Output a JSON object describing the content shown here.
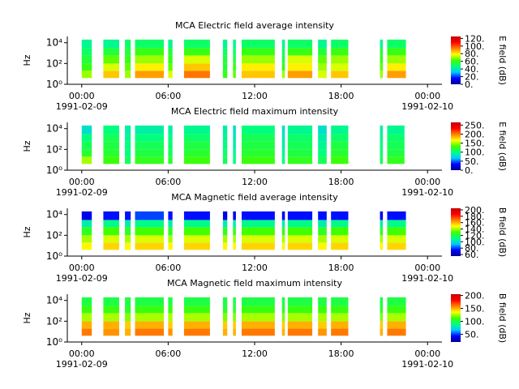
{
  "chart_data": [
    {
      "type": "heatmap",
      "title": "MCA  Electric field average intensity",
      "ylabel": "Hz",
      "colorbar_label": "E field (dB)",
      "log_y": true,
      "ylim": [
        1,
        40000
      ],
      "yticks": [
        {
          "value": 1,
          "label": "10⁰"
        },
        {
          "value": 100,
          "label": "10²"
        },
        {
          "value": 10000,
          "label": "10⁴"
        }
      ],
      "xlim": [
        -1,
        25
      ],
      "xticks": [
        {
          "value": 0,
          "label": "00:00\n1991-02-09"
        },
        {
          "value": 6,
          "label": "06:00"
        },
        {
          "value": 12,
          "label": "12:00"
        },
        {
          "value": 18,
          "label": "18:00"
        },
        {
          "value": 24,
          "label": "00:00\n1991-02-10"
        }
      ],
      "clim": [
        0,
        125
      ],
      "cticks": [
        {
          "value": 0,
          "label": "0."
        },
        {
          "value": 20,
          "label": "20."
        },
        {
          "value": 40,
          "label": "40."
        },
        {
          "value": 60,
          "label": "60."
        },
        {
          "value": 80,
          "label": "80."
        },
        {
          "value": 100,
          "label": "100."
        },
        {
          "value": 120,
          "label": "120."
        }
      ],
      "colormap": [
        "#000090",
        "#0000ff",
        "#00c8ff",
        "#00ff80",
        "#40ff00",
        "#ffff00",
        "#ff8000",
        "#ff0000",
        "#c00000"
      ],
      "bands": [
        4,
        20,
        100,
        600,
        3000,
        20000
      ],
      "segments": [
        [
          0.0,
          0.7
        ],
        [
          1.5,
          2.6
        ],
        [
          3.0,
          3.4
        ],
        [
          3.7,
          5.7
        ],
        [
          6.0,
          6.3
        ],
        [
          7.1,
          8.9
        ],
        [
          9.8,
          10.1
        ],
        [
          10.5,
          10.7
        ],
        [
          11.1,
          13.4
        ],
        [
          13.9,
          14.1
        ],
        [
          14.3,
          16.0
        ],
        [
          16.4,
          17.0
        ],
        [
          17.3,
          18.5
        ],
        [
          20.7,
          20.9
        ],
        [
          21.2,
          22.5
        ]
      ],
      "values": [
        [
          70,
          60,
          55,
          50,
          45
        ],
        [
          85,
          75,
          65,
          55,
          45
        ],
        [
          70,
          65,
          60,
          55,
          50
        ],
        [
          90,
          80,
          70,
          60,
          50
        ],
        [
          75,
          65,
          60,
          55,
          45
        ],
        [
          95,
          85,
          75,
          60,
          50
        ],
        [
          60,
          55,
          55,
          50,
          45
        ],
        [
          65,
          60,
          55,
          50,
          45
        ],
        [
          85,
          80,
          70,
          60,
          50
        ],
        [
          70,
          60,
          55,
          50,
          45
        ],
        [
          90,
          80,
          75,
          60,
          50
        ],
        [
          75,
          70,
          65,
          55,
          45
        ],
        [
          85,
          75,
          70,
          60,
          50
        ],
        [
          70,
          65,
          60,
          55,
          45
        ],
        [
          90,
          80,
          70,
          60,
          50
        ]
      ]
    },
    {
      "type": "heatmap",
      "title": "MCA  Electric field maximum intensity",
      "ylabel": "Hz",
      "colorbar_label": "E field (dB)",
      "log_y": true,
      "ylim": [
        1,
        40000
      ],
      "yticks": [
        {
          "value": 1,
          "label": "10⁰"
        },
        {
          "value": 100,
          "label": "10²"
        },
        {
          "value": 10000,
          "label": "10⁴"
        }
      ],
      "xlim": [
        -1,
        25
      ],
      "xticks": [
        {
          "value": 0,
          "label": "00:00\n1991-02-09"
        },
        {
          "value": 6,
          "label": "06:00"
        },
        {
          "value": 12,
          "label": "12:00"
        },
        {
          "value": 18,
          "label": "18:00"
        },
        {
          "value": 24,
          "label": "00:00\n1991-02-10"
        }
      ],
      "clim": [
        0,
        265
      ],
      "cticks": [
        {
          "value": 0,
          "label": "0."
        },
        {
          "value": 50,
          "label": "50."
        },
        {
          "value": 100,
          "label": "100."
        },
        {
          "value": 150,
          "label": "150."
        },
        {
          "value": 200,
          "label": "200."
        },
        {
          "value": 250,
          "label": "250."
        }
      ],
      "colormap": [
        "#000090",
        "#0000ff",
        "#00c8ff",
        "#00ff80",
        "#40ff00",
        "#ffff00",
        "#ff8000",
        "#ff0000",
        "#c00000"
      ],
      "bands": [
        4,
        20,
        100,
        600,
        3000,
        20000
      ],
      "segments": [
        [
          0.0,
          0.7
        ],
        [
          1.5,
          2.6
        ],
        [
          3.0,
          3.4
        ],
        [
          3.7,
          5.7
        ],
        [
          6.0,
          6.3
        ],
        [
          7.1,
          8.9
        ],
        [
          9.8,
          10.1
        ],
        [
          10.5,
          10.7
        ],
        [
          11.1,
          13.4
        ],
        [
          13.9,
          14.1
        ],
        [
          14.3,
          16.0
        ],
        [
          16.4,
          17.0
        ],
        [
          17.3,
          18.5
        ],
        [
          20.7,
          20.9
        ],
        [
          21.2,
          22.4
        ]
      ],
      "values": [
        [
          150,
          120,
          110,
          100,
          80
        ],
        [
          130,
          120,
          115,
          110,
          100
        ],
        [
          110,
          100,
          100,
          95,
          90
        ],
        [
          125,
          115,
          110,
          100,
          90
        ],
        [
          120,
          110,
          105,
          100,
          90
        ],
        [
          130,
          120,
          115,
          105,
          95
        ],
        [
          110,
          105,
          100,
          95,
          90
        ],
        [
          100,
          95,
          90,
          85,
          80
        ],
        [
          130,
          120,
          115,
          110,
          100
        ],
        [
          100,
          95,
          90,
          85,
          80
        ],
        [
          125,
          115,
          110,
          105,
          95
        ],
        [
          110,
          100,
          95,
          90,
          80
        ],
        [
          130,
          120,
          115,
          105,
          95
        ],
        [
          110,
          105,
          100,
          95,
          90
        ],
        [
          125,
          115,
          110,
          105,
          95
        ]
      ]
    },
    {
      "type": "heatmap",
      "title": "MCA  Magnetic field average intensity",
      "ylabel": "Hz",
      "colorbar_label": "B field (dB)",
      "log_y": true,
      "ylim": [
        1,
        40000
      ],
      "yticks": [
        {
          "value": 1,
          "label": "10⁰"
        },
        {
          "value": 100,
          "label": "10²"
        },
        {
          "value": 10000,
          "label": "10⁴"
        }
      ],
      "xlim": [
        -1,
        25
      ],
      "xticks": [
        {
          "value": 0,
          "label": "00:00\n1991-02-09"
        },
        {
          "value": 6,
          "label": "06:00"
        },
        {
          "value": 12,
          "label": "12:00"
        },
        {
          "value": 18,
          "label": "18:00"
        },
        {
          "value": 24,
          "label": "00:00\n1991-02-10"
        }
      ],
      "clim": [
        55,
        205
      ],
      "cticks": [
        {
          "value": 60,
          "label": "60."
        },
        {
          "value": 80,
          "label": "80."
        },
        {
          "value": 100,
          "label": "100."
        },
        {
          "value": 120,
          "label": "120."
        },
        {
          "value": 140,
          "label": "140."
        },
        {
          "value": 160,
          "label": "160."
        },
        {
          "value": 180,
          "label": "180."
        },
        {
          "value": 200,
          "label": "200."
        }
      ],
      "colormap": [
        "#000090",
        "#0000ff",
        "#00c8ff",
        "#00ff80",
        "#40ff00",
        "#ffff00",
        "#ff8000",
        "#ff0000",
        "#c00000"
      ],
      "bands": [
        4,
        20,
        100,
        600,
        3000,
        20000
      ],
      "segments": [
        [
          0.0,
          0.7
        ],
        [
          1.5,
          2.6
        ],
        [
          3.0,
          3.4
        ],
        [
          3.7,
          5.7
        ],
        [
          6.0,
          6.3
        ],
        [
          7.1,
          8.9
        ],
        [
          9.8,
          10.1
        ],
        [
          10.5,
          10.7
        ],
        [
          11.1,
          13.4
        ],
        [
          13.9,
          14.1
        ],
        [
          14.3,
          16.0
        ],
        [
          16.4,
          17.0
        ],
        [
          17.3,
          18.5
        ],
        [
          20.7,
          20.9
        ],
        [
          21.2,
          22.5
        ]
      ],
      "values": [
        [
          150,
          140,
          125,
          105,
          70
        ],
        [
          155,
          145,
          130,
          110,
          75
        ],
        [
          150,
          140,
          125,
          105,
          75
        ],
        [
          155,
          145,
          130,
          110,
          80
        ],
        [
          150,
          140,
          125,
          105,
          75
        ],
        [
          155,
          145,
          130,
          110,
          75
        ],
        [
          150,
          140,
          125,
          105,
          70
        ],
        [
          150,
          140,
          125,
          105,
          70
        ],
        [
          155,
          145,
          130,
          110,
          75
        ],
        [
          150,
          140,
          125,
          105,
          70
        ],
        [
          155,
          145,
          130,
          110,
          75
        ],
        [
          150,
          140,
          125,
          105,
          75
        ],
        [
          155,
          145,
          130,
          110,
          75
        ],
        [
          150,
          140,
          125,
          105,
          70
        ],
        [
          155,
          145,
          130,
          110,
          75
        ]
      ]
    },
    {
      "type": "heatmap",
      "title": "MCA  Magnetic field maximum intensity",
      "ylabel": "Hz",
      "colorbar_label": "B field (dB)",
      "log_y": true,
      "ylim": [
        1,
        40000
      ],
      "yticks": [
        {
          "value": 1,
          "label": "10⁰"
        },
        {
          "value": 100,
          "label": "10²"
        },
        {
          "value": 10000,
          "label": "10⁴"
        }
      ],
      "xlim": [
        -1,
        25
      ],
      "xticks": [
        {
          "value": 0,
          "label": "00:00\n1991-02-09"
        },
        {
          "value": 6,
          "label": "06:00"
        },
        {
          "value": 12,
          "label": "12:00"
        },
        {
          "value": 18,
          "label": "18:00"
        },
        {
          "value": 24,
          "label": "00:00\n1991-02-10"
        }
      ],
      "clim": [
        20,
        205
      ],
      "cticks": [
        {
          "value": 50,
          "label": "50."
        },
        {
          "value": 100,
          "label": "100."
        },
        {
          "value": 150,
          "label": "150."
        },
        {
          "value": 200,
          "label": "200."
        }
      ],
      "colormap": [
        "#000090",
        "#0000ff",
        "#00c8ff",
        "#00ff80",
        "#40ff00",
        "#ffff00",
        "#ff8000",
        "#ff0000",
        "#c00000"
      ],
      "bands": [
        4,
        20,
        100,
        600,
        3000,
        20000
      ],
      "segments": [
        [
          0.0,
          0.7
        ],
        [
          1.5,
          2.6
        ],
        [
          3.0,
          3.4
        ],
        [
          3.7,
          5.7
        ],
        [
          6.0,
          6.3
        ],
        [
          7.1,
          8.9
        ],
        [
          9.8,
          10.1
        ],
        [
          10.5,
          10.7
        ],
        [
          11.1,
          13.4
        ],
        [
          13.9,
          14.1
        ],
        [
          14.3,
          16.0
        ],
        [
          16.4,
          17.0
        ],
        [
          17.3,
          18.5
        ],
        [
          20.7,
          20.9
        ],
        [
          21.2,
          22.5
        ]
      ],
      "values": [
        [
          160,
          150,
          125,
          110,
          100
        ],
        [
          155,
          150,
          125,
          110,
          100
        ],
        [
          150,
          145,
          120,
          105,
          100
        ],
        [
          160,
          150,
          125,
          110,
          100
        ],
        [
          155,
          145,
          125,
          110,
          100
        ],
        [
          160,
          150,
          125,
          110,
          100
        ],
        [
          150,
          145,
          120,
          105,
          100
        ],
        [
          150,
          145,
          120,
          105,
          100
        ],
        [
          160,
          150,
          125,
          110,
          100
        ],
        [
          150,
          145,
          120,
          105,
          100
        ],
        [
          160,
          150,
          125,
          110,
          100
        ],
        [
          155,
          145,
          125,
          110,
          100
        ],
        [
          160,
          150,
          125,
          110,
          100
        ],
        [
          150,
          145,
          120,
          105,
          100
        ],
        [
          160,
          150,
          125,
          110,
          100
        ]
      ]
    }
  ]
}
